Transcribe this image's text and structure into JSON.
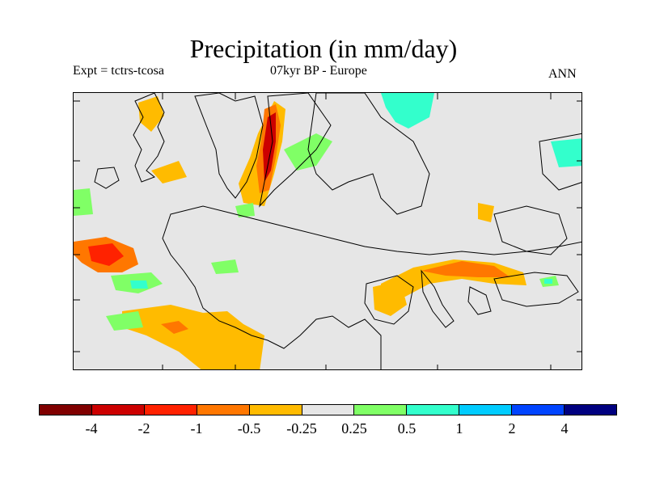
{
  "header": {
    "title": "Precipitation (in mm/day)",
    "experiment": "Expt = tctrs-tcosa",
    "period": "07kyr BP - Europe",
    "season": "ANN"
  },
  "map": {
    "region": "Europe",
    "background_color": "#e6e6e6",
    "coastline_color": "#000000"
  },
  "colorbar": {
    "colors": [
      "#800000",
      "#cc0000",
      "#ff2200",
      "#ff7700",
      "#ffbb00",
      "#e6e6e6",
      "#80ff66",
      "#33ffcc",
      "#00ccff",
      "#0044ff",
      "#000080"
    ],
    "labels": [
      "-4",
      "-2",
      "-1",
      "-0.5",
      "-0.25",
      "0.25",
      "0.5",
      "1",
      "2",
      "4"
    ]
  }
}
